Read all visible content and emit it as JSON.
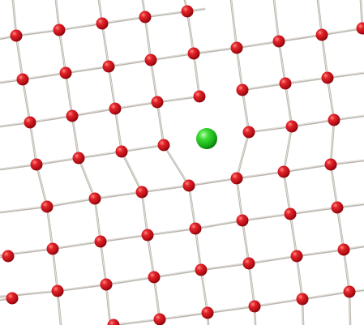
{
  "diagram": {
    "kind": "atomic-lattice-defect",
    "view": "square-lattice-with-substitutional-impurity",
    "colors": {
      "background": "#ffffff",
      "bond": "#b9b5ad",
      "bond_highlight": "#e8e5df",
      "host_atom": "#c8141a",
      "host_atom_dark": "#6e0006",
      "host_atom_light": "#ff8a80",
      "impurity_atom": "#1ec41e",
      "impurity_atom_dark": "#0a6a0a",
      "impurity_atom_light": "#b6ffb0"
    },
    "atom_types": [
      {
        "type": "host",
        "icon": "red-sphere-icon"
      },
      {
        "type": "impurity",
        "icon": "green-sphere-icon"
      }
    ]
  }
}
